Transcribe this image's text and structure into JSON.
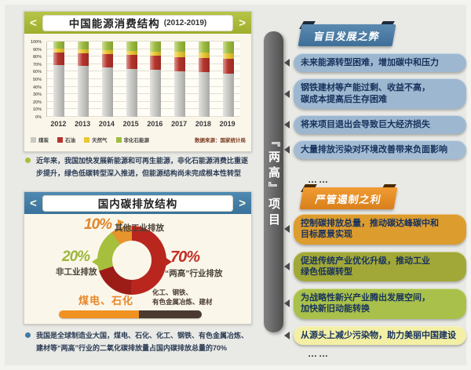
{
  "page": {
    "ribbon_title": "『两高』项目",
    "background": "#e9e9e5"
  },
  "energy_panel": {
    "nav_prev": "<",
    "nav_next": ">",
    "title": "中国能源消费结构",
    "subtitle": "(2012-2019)"
  },
  "energy_note": {
    "text": "近年来，我国加快发展新能源和可再生能源，非化石能源消费比重逐步提升，绿色低碳转型深入推进，但能源结构尚未完成根本性转型"
  },
  "carbon_panel": {
    "nav_prev": "<",
    "nav_next": ">",
    "title": "国内碳排放结构",
    "donut_labels": {
      "other_pct": "10%",
      "other_label": "其他工业排放",
      "nonind_pct": "20%",
      "nonind_label": "非工业排放",
      "lianggao_pct": "70%",
      "lianggao_label": "“两高”行业排放"
    },
    "breakdown": {
      "left_label": "煤电、石化",
      "right_label": "化工、钢铁、\n有色金属冶炼、建材",
      "left_color": "#ef9221",
      "right_color": "#4a3a30"
    }
  },
  "carbon_note": {
    "text": "我国是全球制造业大国，煤电、石化、化工、钢铁、有色金属冶炼、建材等“两高”行业的二氧化碳排放量占国内碳排放总量的70%"
  },
  "cons_section": {
    "header": "盲目发展之弊",
    "accent": "#46759e",
    "items": [
      {
        "text": "未来能源转型困难，增加碳中和压力",
        "color": "#9db7d0"
      },
      {
        "text": "钢铁建材等产能过剩、收益不高，\n碳成本提高后生存困难",
        "color": "#9db7d0"
      },
      {
        "text": "将来项目退出会导致巨大经济损失",
        "color": "#9db7d0"
      },
      {
        "text": "大量排放污染对环境改善带来负面影响",
        "color": "#a3bcd4"
      }
    ],
    "more": "……"
  },
  "pros_section": {
    "header": "严管遏制之利",
    "accent": "#e0851f",
    "items": [
      {
        "text": "控制碳排放总量，推动碳达峰碳中和\n目标愿景实现",
        "color": "#dd9c2e"
      },
      {
        "text": "促进传统产业优化升级，推动工业\n绿色低碳转型",
        "color": "#a2a838"
      },
      {
        "text": "为战略性新兴产业腾出发展空间，\n加快新旧动能转换",
        "color": "#a9c14a"
      },
      {
        "text": "从源头上减少污染物，助力美丽中国建设",
        "color": "#f3efa5"
      }
    ],
    "more": "……"
  },
  "chart_data": [
    {
      "type": "bar",
      "stacked": true,
      "title": "中国能源消费结构 (2012-2019)",
      "categories": [
        "2012",
        "2013",
        "2014",
        "2015",
        "2016",
        "2017",
        "2018",
        "2019"
      ],
      "series": [
        {
          "name": "煤炭",
          "color": "#c9c9c6",
          "values": [
            68.5,
            67.4,
            65.8,
            63.8,
            62.2,
            60.6,
            59.0,
            57.7
          ]
        },
        {
          "name": "石油",
          "color": "#b5342c",
          "values": [
            17.0,
            17.1,
            17.3,
            18.4,
            18.7,
            18.9,
            18.9,
            19.0
          ]
        },
        {
          "name": "天然气",
          "color": "#e9c832",
          "values": [
            4.8,
            5.3,
            5.6,
            5.8,
            6.1,
            6.9,
            7.6,
            8.0
          ]
        },
        {
          "name": "非化石能源",
          "color": "#9dbd3f",
          "values": [
            9.7,
            10.2,
            11.3,
            12.0,
            13.0,
            13.6,
            14.5,
            15.3
          ]
        }
      ],
      "ylim": [
        0,
        100
      ],
      "ytick_step": 10,
      "ytick_suffix": "%",
      "grid": true,
      "legend_position": "bottom",
      "source": "数据来源：国家统计局"
    },
    {
      "type": "pie",
      "donut": true,
      "title": "国内碳排放结构",
      "slices": [
        {
          "label": "“两高”行业排放",
          "value": 70,
          "color": "#b8261e",
          "color_dark": "#9c1c18"
        },
        {
          "label": "非工业排放",
          "value": 20,
          "color": "#a6bf3c"
        },
        {
          "label": "其他工业排放",
          "value": 10,
          "color": "#e8942d"
        }
      ],
      "annotations": [
        "煤电、石化",
        "化工、钢铁、有色金属冶炼、建材"
      ]
    }
  ]
}
